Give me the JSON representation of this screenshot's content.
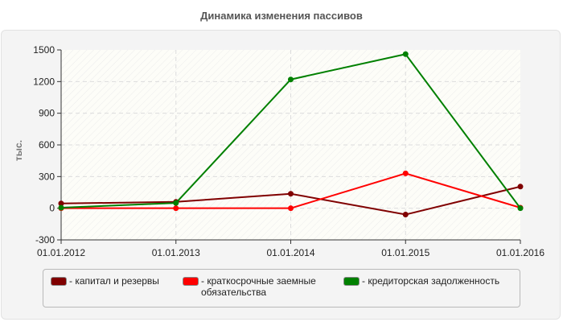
{
  "header": {
    "title": "Динамика изменения пассивов"
  },
  "axis": {
    "y_label": "тыс.",
    "y_ticks": [
      "1500",
      "1200",
      "900",
      "600",
      "300",
      "0",
      "-300"
    ],
    "x_ticks": [
      "01.01.2012",
      "01.01.2013",
      "01.01.2014",
      "01.01.2015",
      "01.01.2016"
    ]
  },
  "legend": {
    "items": [
      {
        "label": "- капитал и резервы",
        "color": "#800000"
      },
      {
        "label": "- краткосрочные заемные обязательства",
        "color": "#ff0000"
      },
      {
        "label": "- кредиторская задолженность",
        "color": "#008000"
      }
    ]
  },
  "chart_data": {
    "type": "line",
    "title": "Динамика изменения пассивов",
    "xlabel": "",
    "ylabel": "тыс.",
    "ylim": [
      -300,
      1500
    ],
    "y_ticks": [
      -300,
      0,
      300,
      600,
      900,
      1200,
      1500
    ],
    "grid": true,
    "legend_position": "bottom",
    "x": [
      "01.01.2012",
      "01.01.2013",
      "01.01.2014",
      "01.01.2015",
      "01.01.2016"
    ],
    "series": [
      {
        "name": "капитал и резервы",
        "color": "#800000",
        "values": [
          45,
          60,
          137,
          -60,
          205
        ]
      },
      {
        "name": "краткосрочные заемные обязательства",
        "color": "#ff0000",
        "values": [
          0,
          0,
          0,
          330,
          5
        ]
      },
      {
        "name": "кредиторская задолженность",
        "color": "#008000",
        "values": [
          5,
          50,
          1220,
          1460,
          0
        ]
      }
    ]
  }
}
